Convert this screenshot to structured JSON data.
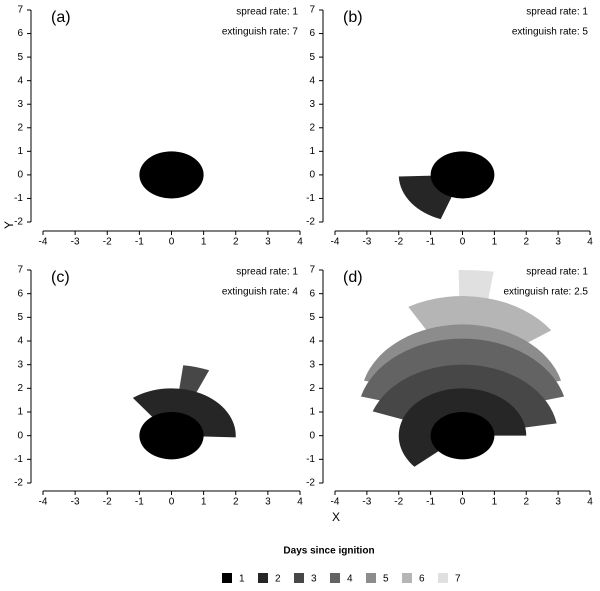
{
  "chart_data": [
    {
      "type": "sector",
      "label": "(a)",
      "annotations": [
        "spread rate: 1",
        "extinguish rate: 7"
      ],
      "xlim": [
        -4,
        4
      ],
      "ylim": [
        -2,
        7
      ],
      "xticks": [
        -4,
        -3,
        -2,
        -1,
        0,
        1,
        2,
        3,
        4
      ],
      "yticks": [
        -2,
        -1,
        0,
        1,
        2,
        3,
        4,
        5,
        6,
        7
      ],
      "sectors": [
        {
          "day": 1,
          "center": [
            0,
            0
          ],
          "radius": 1,
          "angles": [
            0,
            360
          ]
        }
      ]
    },
    {
      "type": "sector",
      "label": "(b)",
      "annotations": [
        "spread rate: 1",
        "extinguish rate: 5"
      ],
      "xlim": [
        -4,
        4
      ],
      "ylim": [
        -2,
        7
      ],
      "xticks": [
        -4,
        -3,
        -2,
        -1,
        0,
        1,
        2,
        3,
        4
      ],
      "yticks": [
        -2,
        -1,
        0,
        1,
        2,
        3,
        4,
        5,
        6,
        7
      ],
      "sectors": [
        {
          "day": 2,
          "center": [
            0,
            0
          ],
          "radius": 2,
          "angles": [
            182,
            250
          ]
        },
        {
          "day": 1,
          "center": [
            0,
            0
          ],
          "radius": 1,
          "angles": [
            0,
            360
          ]
        }
      ]
    },
    {
      "type": "sector",
      "label": "(c)",
      "annotations": [
        "spread rate: 1",
        "extinguish rate: 4"
      ],
      "xlim": [
        -4,
        4
      ],
      "ylim": [
        -2,
        7
      ],
      "xticks": [
        -4,
        -3,
        -2,
        -1,
        0,
        1,
        2,
        3,
        4
      ],
      "yticks": [
        -2,
        -1,
        0,
        1,
        2,
        3,
        4,
        5,
        6,
        7
      ],
      "sectors": [
        {
          "day": 3,
          "center": [
            0,
            0
          ],
          "radius": 3,
          "angles": [
            67,
            83
          ]
        },
        {
          "day": 2,
          "center": [
            0,
            0
          ],
          "radius": 2,
          "angles": [
            -2,
            127
          ]
        },
        {
          "day": 1,
          "center": [
            0,
            0
          ],
          "radius": 1,
          "angles": [
            0,
            360
          ]
        }
      ]
    },
    {
      "type": "sector",
      "label": "(d)",
      "annotations": [
        "spread rate: 1",
        "extinguish rate: 2.5"
      ],
      "xlim": [
        -4,
        4
      ],
      "ylim": [
        -2,
        7
      ],
      "xticks": [
        -4,
        -3,
        -2,
        -1,
        0,
        1,
        2,
        3,
        4
      ],
      "yticks": [
        -2,
        -1,
        0,
        1,
        2,
        3,
        4,
        5,
        6,
        7
      ],
      "sectors": [
        {
          "day": 7,
          "center": [
            0,
            0
          ],
          "radius": 7,
          "angles": [
            82,
            91
          ]
        },
        {
          "day": 6,
          "center": [
            0,
            2.5
          ],
          "radius": 3.4,
          "angles": [
            35,
            120
          ]
        },
        {
          "day": 5,
          "center": [
            0,
            1.5
          ],
          "radius": 3.2,
          "angles": [
            15,
            165
          ]
        },
        {
          "day": 4,
          "center": [
            0,
            0.8
          ],
          "radius": 3.3,
          "angles": [
            15,
            165
          ]
        },
        {
          "day": 3,
          "center": [
            0,
            0
          ],
          "radius": 3,
          "angles": [
            10,
            160
          ]
        },
        {
          "day": 2,
          "center": [
            0,
            0
          ],
          "radius": 2,
          "angles": [
            0,
            221
          ]
        },
        {
          "day": 1,
          "center": [
            0,
            0
          ],
          "radius": 1,
          "angles": [
            0,
            360
          ]
        }
      ]
    }
  ],
  "x_label": "X",
  "y_label": "Y",
  "legend": {
    "title": "Days since ignition",
    "categories": [
      1,
      2,
      3,
      4,
      5,
      6,
      7
    ],
    "colors": [
      "#000000",
      "#262626",
      "#474747",
      "#636363",
      "#8c8c8c",
      "#b5b5b5",
      "#e0e0e0"
    ]
  }
}
